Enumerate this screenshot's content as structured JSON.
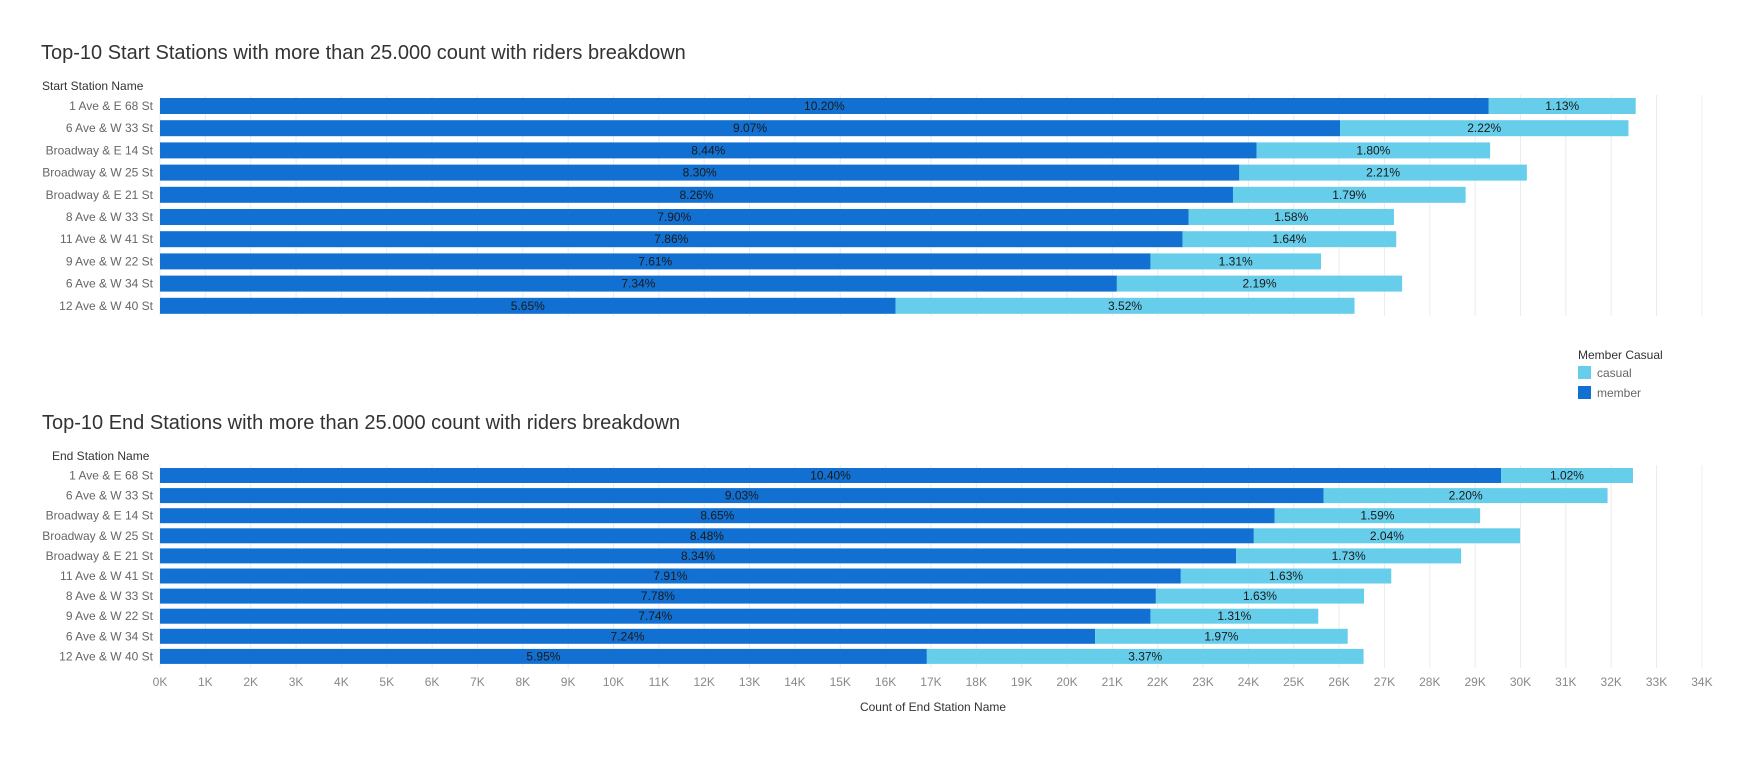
{
  "colors": {
    "member": "#1170d1",
    "casual": "#66cdeb"
  },
  "legend": {
    "title": "Member Casual",
    "items": [
      {
        "label": "casual",
        "color_key": "casual"
      },
      {
        "label": "member",
        "color_key": "member"
      }
    ]
  },
  "x_axis": {
    "title": "Count of End Station Name",
    "ticks": [
      "0K",
      "1K",
      "2K",
      "3K",
      "4K",
      "5K",
      "6K",
      "7K",
      "8K",
      "9K",
      "10K",
      "11K",
      "12K",
      "13K",
      "14K",
      "15K",
      "16K",
      "17K",
      "18K",
      "19K",
      "20K",
      "21K",
      "22K",
      "23K",
      "24K",
      "25K",
      "26K",
      "27K",
      "28K",
      "29K",
      "30K",
      "31K",
      "32K",
      "33K",
      "34K"
    ]
  },
  "chart_data": [
    {
      "type": "bar",
      "orientation": "horizontal",
      "stacked": true,
      "title": "Top-10 Start Stations with more than 25.000 count with riders breakdown",
      "ylabel": "Start Station Name",
      "xlim": [
        0,
        34000
      ],
      "categories": [
        "1 Ave & E 68 St",
        "6 Ave & W 33 St",
        "Broadway & E 14 St",
        "Broadway & W 25 St",
        "Broadway & E 21 St",
        "8 Ave & W 33 St",
        "11 Ave & W 41 St",
        "9 Ave & W 22 St",
        "6 Ave & W 34 St",
        "12 Ave & W 40 St"
      ],
      "series": [
        {
          "name": "member",
          "values": [
            29300,
            26020,
            24180,
            23800,
            23660,
            22680,
            22550,
            21840,
            21100,
            16220
          ],
          "labels": [
            "10.20%",
            "9.07%",
            "8.44%",
            "8.30%",
            "8.26%",
            "7.90%",
            "7.86%",
            "7.61%",
            "7.34%",
            "5.65%"
          ]
        },
        {
          "name": "casual",
          "values": [
            3240,
            6360,
            5150,
            6340,
            5130,
            4530,
            4710,
            3760,
            6290,
            10120
          ],
          "labels": [
            "1.13%",
            "2.22%",
            "1.80%",
            "2.21%",
            "1.79%",
            "1.58%",
            "1.64%",
            "1.31%",
            "2.19%",
            "3.52%"
          ]
        }
      ]
    },
    {
      "type": "bar",
      "orientation": "horizontal",
      "stacked": true,
      "title": "Top-10 End Stations with more than 25.000 count with riders breakdown",
      "ylabel": "End Station Name",
      "xlabel": "Count of End Station Name",
      "xlim": [
        0,
        34000
      ],
      "categories": [
        "1 Ave & E 68 St",
        "6 Ave & W 33 St",
        "Broadway & E 14 St",
        "Broadway & W 25 St",
        "Broadway & E 21 St",
        "11 Ave & W 41 St",
        "8 Ave & W 33 St",
        "9 Ave & W 22 St",
        "6 Ave & W 34 St",
        "12 Ave & W 40 St"
      ],
      "series": [
        {
          "name": "member",
          "values": [
            29570,
            25660,
            24580,
            24120,
            23730,
            22510,
            21960,
            21840,
            20620,
            16910
          ],
          "labels": [
            "10.40%",
            "9.03%",
            "8.65%",
            "8.48%",
            "8.34%",
            "7.91%",
            "7.78%",
            "7.74%",
            "7.24%",
            "5.95%"
          ]
        },
        {
          "name": "casual",
          "values": [
            2910,
            6260,
            4530,
            5870,
            4960,
            4640,
            4590,
            3700,
            5570,
            9630
          ],
          "labels": [
            "1.02%",
            "2.20%",
            "1.59%",
            "2.04%",
            "1.73%",
            "1.63%",
            "1.63%",
            "1.31%",
            "1.97%",
            "3.37%"
          ]
        }
      ]
    }
  ]
}
